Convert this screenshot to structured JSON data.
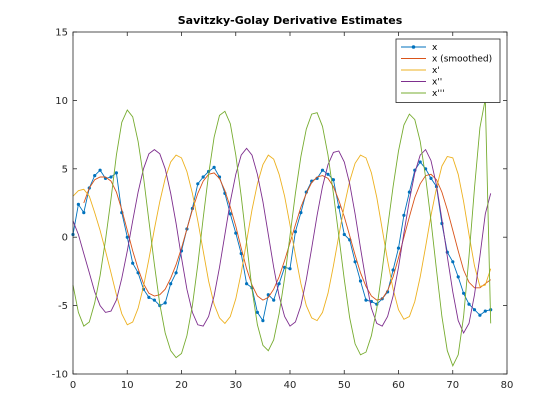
{
  "chart_data": {
    "type": "line",
    "title": "Savitzky-Golay Derivative Estimates",
    "xlabel": "",
    "ylabel": "",
    "xlim": [
      0,
      80
    ],
    "ylim": [
      -10,
      15
    ],
    "x_ticks": [
      0,
      10,
      20,
      30,
      40,
      50,
      60,
      70,
      80
    ],
    "y_ticks": [
      -10,
      -5,
      0,
      5,
      10,
      15
    ],
    "grid": false,
    "legend_position": "top-right",
    "series": [
      {
        "name": "x",
        "color": "#0072BD",
        "marker": "dot",
        "x": [
          0,
          1,
          2,
          3,
          4,
          5,
          6,
          7,
          8,
          9,
          10,
          11,
          12,
          13,
          14,
          15,
          16,
          17,
          18,
          19,
          20,
          21,
          22,
          23,
          24,
          25,
          26,
          27,
          28,
          29,
          30,
          31,
          32,
          33,
          34,
          35,
          36,
          37,
          38,
          39,
          40,
          41,
          42,
          43,
          44,
          45,
          46,
          47,
          48,
          49,
          50,
          51,
          52,
          53,
          54,
          55,
          56,
          57,
          58,
          59,
          60,
          61,
          62,
          63,
          64,
          65,
          66,
          67,
          68,
          69,
          70,
          71,
          72,
          73,
          74,
          75,
          76,
          77
        ],
        "y": [
          0.2,
          2.4,
          1.8,
          3.6,
          4.5,
          4.9,
          4.3,
          4.4,
          4.7,
          1.8,
          0.0,
          -1.9,
          -2.6,
          -3.8,
          -4.4,
          -4.6,
          -5.0,
          -4.8,
          -3.4,
          -2.6,
          -1.0,
          0.6,
          2.1,
          3.9,
          4.4,
          4.8,
          5.1,
          4.4,
          3.2,
          1.7,
          0.3,
          -1.2,
          -3.4,
          -3.7,
          -5.5,
          -6.1,
          -4.2,
          -4.6,
          -3.4,
          -2.2,
          -2.3,
          0.4,
          1.8,
          3.3,
          4.1,
          4.3,
          4.9,
          4.6,
          4.2,
          2.2,
          0.2,
          -0.2,
          -1.8,
          -3.2,
          -4.6,
          -4.7,
          -4.9,
          -4.5,
          -4.0,
          -2.4,
          -0.8,
          1.6,
          3.3,
          4.9,
          5.5,
          5.0,
          4.3,
          3.7,
          1.0,
          -1.1,
          -1.8,
          -2.9,
          -4.1,
          -4.9,
          -5.3,
          -5.7,
          -5.4,
          -5.3
        ]
      },
      {
        "name": "x (smoothed)",
        "color": "#D95319",
        "x": [
          2,
          3,
          4,
          5,
          6,
          7,
          8,
          9,
          10,
          11,
          12,
          13,
          14,
          15,
          16,
          17,
          18,
          19,
          20,
          21,
          22,
          23,
          24,
          25,
          26,
          27,
          28,
          29,
          30,
          31,
          32,
          33,
          34,
          35,
          36,
          37,
          38,
          39,
          40,
          41,
          42,
          43,
          44,
          45,
          46,
          47,
          48,
          49,
          50,
          51,
          52,
          53,
          54,
          55,
          56,
          57,
          58,
          59,
          60,
          61,
          62,
          63,
          64,
          65,
          66,
          67,
          68,
          69,
          70,
          71,
          72,
          73,
          74,
          75,
          76,
          77
        ],
        "y": [
          2.5,
          3.6,
          4.2,
          4.4,
          4.4,
          4.1,
          3.3,
          2.0,
          0.5,
          -1.0,
          -2.3,
          -3.4,
          -4.1,
          -4.3,
          -4.2,
          -3.8,
          -3.0,
          -2.0,
          -0.8,
          0.6,
          2.0,
          3.2,
          4.1,
          4.6,
          4.7,
          4.3,
          3.4,
          2.2,
          0.8,
          -0.8,
          -2.3,
          -3.5,
          -4.3,
          -4.6,
          -4.4,
          -3.8,
          -2.9,
          -1.7,
          -0.4,
          0.9,
          2.2,
          3.2,
          4.0,
          4.4,
          4.5,
          4.3,
          3.7,
          2.7,
          1.5,
          0.1,
          -1.3,
          -2.6,
          -3.6,
          -4.3,
          -4.6,
          -4.5,
          -3.9,
          -2.9,
          -1.5,
          0.0,
          1.5,
          2.9,
          3.9,
          4.5,
          4.6,
          4.2,
          3.3,
          2.0,
          0.5,
          -1.0,
          -2.4,
          -3.3,
          -3.7,
          -3.7,
          -3.4,
          -3.1
        ]
      },
      {
        "name": "x'",
        "color": "#EDB120",
        "x": [
          0,
          1,
          2,
          3,
          4,
          5,
          6,
          7,
          8,
          9,
          10,
          11,
          12,
          13,
          14,
          15,
          16,
          17,
          18,
          19,
          20,
          21,
          22,
          23,
          24,
          25,
          26,
          27,
          28,
          29,
          30,
          31,
          32,
          33,
          34,
          35,
          36,
          37,
          38,
          39,
          40,
          41,
          42,
          43,
          44,
          45,
          46,
          47,
          48,
          49,
          50,
          51,
          52,
          53,
          54,
          55,
          56,
          57,
          58,
          59,
          60,
          61,
          62,
          63,
          64,
          65,
          66,
          67,
          68,
          69,
          70,
          71,
          72,
          73,
          74,
          75,
          76,
          77
        ],
        "y": [
          3.0,
          3.4,
          3.5,
          3.0,
          1.8,
          0.5,
          -1.0,
          -2.6,
          -4.2,
          -5.6,
          -6.4,
          -6.2,
          -5.2,
          -3.6,
          -1.6,
          0.6,
          2.6,
          4.3,
          5.5,
          6.0,
          5.8,
          4.8,
          3.2,
          1.2,
          -1.0,
          -3.2,
          -4.9,
          -5.9,
          -6.3,
          -5.8,
          -4.5,
          -2.6,
          -0.3,
          2.0,
          3.9,
          5.3,
          6.0,
          5.7,
          4.6,
          3.0,
          0.9,
          -1.3,
          -3.4,
          -5.0,
          -5.9,
          -6.1,
          -5.5,
          -4.1,
          -2.1,
          0.1,
          2.3,
          4.1,
          5.4,
          6.0,
          5.8,
          4.7,
          2.9,
          0.6,
          -1.7,
          -3.8,
          -5.3,
          -6.0,
          -5.8,
          -4.7,
          -2.9,
          -0.7,
          1.6,
          3.6,
          5.2,
          5.9,
          5.8,
          4.6,
          2.6,
          0.2,
          -2.1,
          -3.6,
          -3.5,
          -2.3
        ]
      },
      {
        "name": "x''",
        "color": "#7E2F8E",
        "x": [
          0,
          1,
          2,
          3,
          4,
          5,
          6,
          7,
          8,
          9,
          10,
          11,
          12,
          13,
          14,
          15,
          16,
          17,
          18,
          19,
          20,
          21,
          22,
          23,
          24,
          25,
          26,
          27,
          28,
          29,
          30,
          31,
          32,
          33,
          34,
          35,
          36,
          37,
          38,
          39,
          40,
          41,
          42,
          43,
          44,
          45,
          46,
          47,
          48,
          49,
          50,
          51,
          52,
          53,
          54,
          55,
          56,
          57,
          58,
          59,
          60,
          61,
          62,
          63,
          64,
          65,
          66,
          67,
          68,
          69,
          70,
          71,
          72,
          73,
          74,
          75,
          76,
          77
        ],
        "y": [
          1.2,
          0.2,
          -1.2,
          -2.6,
          -4.0,
          -5.0,
          -5.5,
          -5.4,
          -4.6,
          -3.0,
          -1.0,
          1.2,
          3.3,
          5.0,
          6.1,
          6.4,
          6.1,
          5.0,
          3.2,
          1.0,
          -1.5,
          -3.8,
          -5.5,
          -6.4,
          -6.5,
          -5.8,
          -4.3,
          -2.2,
          0.2,
          2.6,
          4.6,
          6.0,
          6.5,
          6.0,
          4.6,
          2.6,
          0.2,
          -2.2,
          -4.3,
          -5.8,
          -6.5,
          -6.2,
          -5.0,
          -3.1,
          -0.8,
          1.6,
          3.7,
          5.3,
          6.2,
          6.3,
          5.5,
          3.9,
          1.7,
          -0.8,
          -3.2,
          -5.2,
          -6.3,
          -6.5,
          -5.8,
          -4.3,
          -2.2,
          0.3,
          2.7,
          4.7,
          6.0,
          6.4,
          5.6,
          3.8,
          1.3,
          -1.4,
          -4.0,
          -6.1,
          -7.0,
          -6.3,
          -4.2,
          -1.4,
          1.7,
          3.2
        ]
      },
      {
        "name": "x'''",
        "color": "#77AC30",
        "x": [
          0,
          1,
          2,
          3,
          4,
          5,
          6,
          7,
          8,
          9,
          10,
          11,
          12,
          13,
          14,
          15,
          16,
          17,
          18,
          19,
          20,
          21,
          22,
          23,
          24,
          25,
          26,
          27,
          28,
          29,
          30,
          31,
          32,
          33,
          34,
          35,
          36,
          37,
          38,
          39,
          40,
          41,
          42,
          43,
          44,
          45,
          46,
          47,
          48,
          49,
          50,
          51,
          52,
          53,
          54,
          55,
          56,
          57,
          58,
          59,
          60,
          61,
          62,
          63,
          64,
          65,
          66,
          67,
          68,
          69,
          70,
          71,
          72,
          73,
          74,
          75,
          76,
          77
        ],
        "y": [
          -3.5,
          -5.5,
          -6.5,
          -6.2,
          -4.8,
          -2.8,
          -0.2,
          2.8,
          6.0,
          8.4,
          9.3,
          8.8,
          7.0,
          4.4,
          1.2,
          -2.0,
          -4.9,
          -7.0,
          -8.3,
          -8.8,
          -8.5,
          -7.2,
          -5.0,
          -2.0,
          1.4,
          4.6,
          7.3,
          8.9,
          9.2,
          8.3,
          6.0,
          3.0,
          -0.4,
          -3.8,
          -6.4,
          -7.9,
          -8.3,
          -7.5,
          -5.6,
          -3.0,
          0.1,
          3.2,
          5.9,
          7.9,
          9.0,
          9.1,
          8.1,
          6.0,
          3.2,
          0.1,
          -3.1,
          -5.9,
          -7.8,
          -8.6,
          -8.4,
          -7.2,
          -5.2,
          -2.4,
          0.7,
          3.7,
          6.3,
          8.2,
          9.0,
          8.6,
          7.0,
          4.4,
          1.2,
          -2.4,
          -5.8,
          -8.3,
          -9.4,
          -8.6,
          -5.8,
          -1.4,
          3.6,
          8.0,
          10.1,
          -6.3
        ]
      }
    ]
  }
}
